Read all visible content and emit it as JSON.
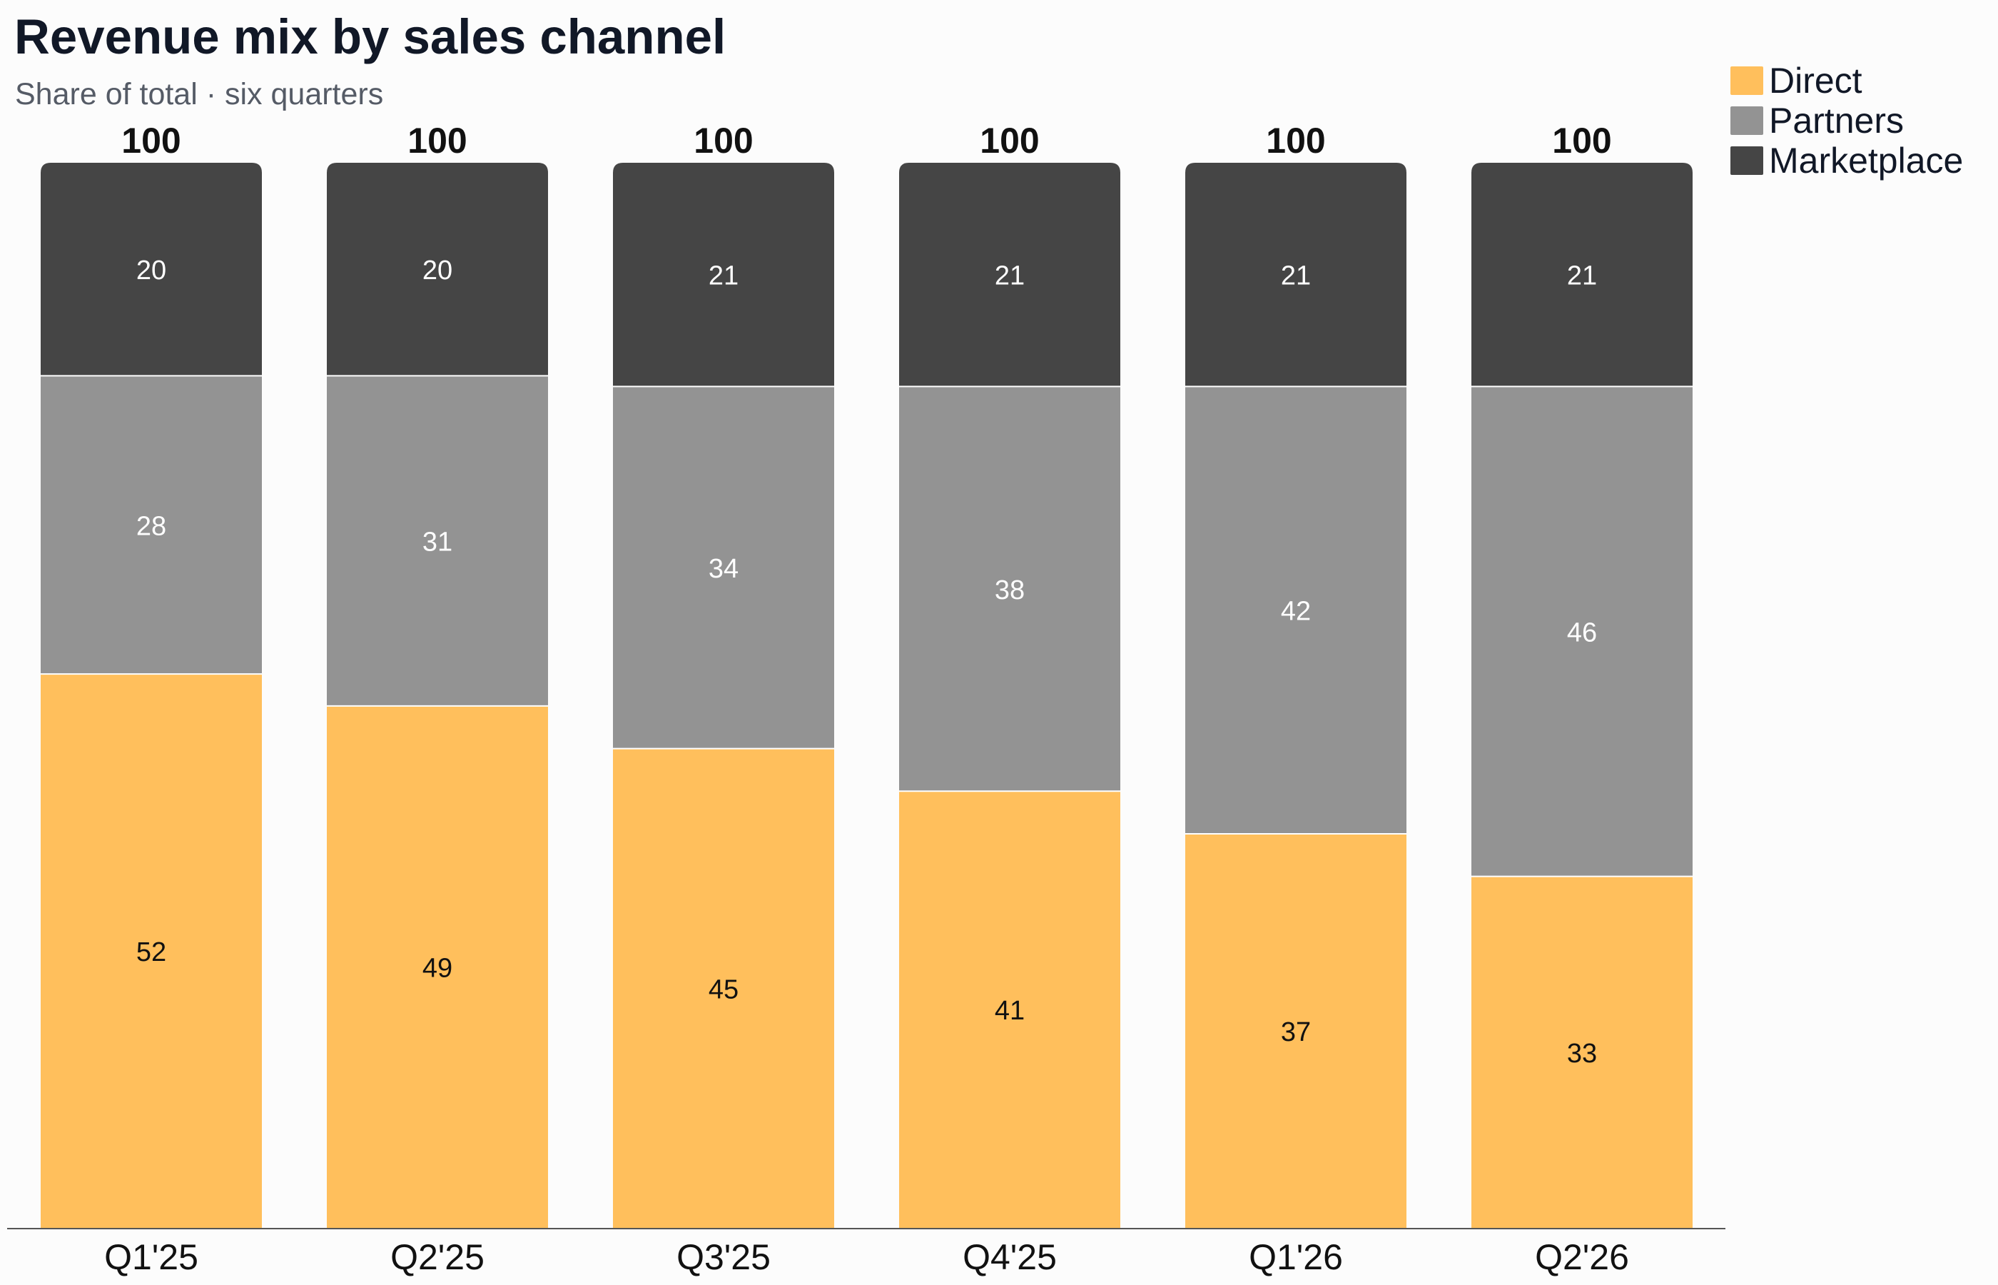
{
  "chart_data": {
    "type": "bar",
    "stacked": true,
    "title": "Revenue mix by sales channel",
    "subtitle": "Share of total · six quarters",
    "categories": [
      "Q1'25",
      "Q2'25",
      "Q3'25",
      "Q4'25",
      "Q1'26",
      "Q2'26"
    ],
    "series": [
      {
        "name": "Direct",
        "color": "#ffbf5c",
        "values": [
          52,
          49,
          45,
          41,
          37,
          33
        ]
      },
      {
        "name": "Partners",
        "color": "#939393",
        "values": [
          28,
          31,
          34,
          38,
          42,
          46
        ]
      },
      {
        "name": "Marketplace",
        "color": "#454545",
        "values": [
          20,
          20,
          21,
          21,
          21,
          21
        ]
      }
    ],
    "totals": [
      "100",
      "100",
      "100",
      "100",
      "100",
      "100"
    ],
    "ylim": [
      0,
      100
    ],
    "grid": false,
    "legend_position": "top-right",
    "label_colors": {
      "Direct": "#111111",
      "Partners": "#ffffff",
      "Marketplace": "#ffffff"
    }
  }
}
